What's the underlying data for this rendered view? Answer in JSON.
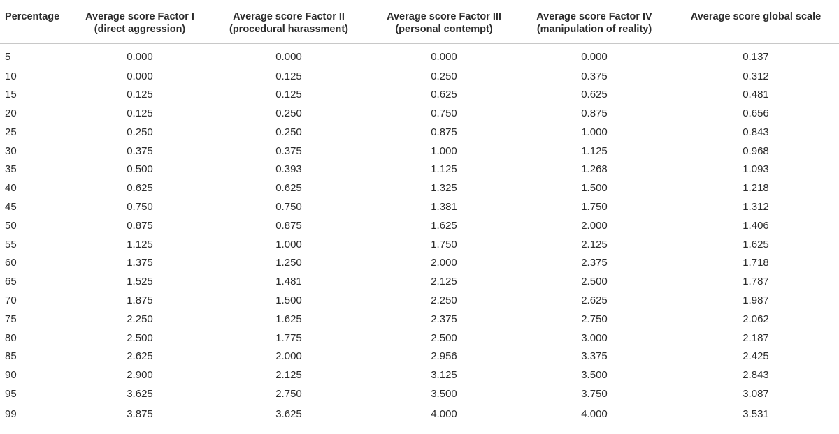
{
  "table": {
    "headers": [
      {
        "lines": [
          "Percentage"
        ]
      },
      {
        "lines": [
          "Average score Factor I",
          "(direct aggression)"
        ]
      },
      {
        "lines": [
          "Average score Factor II",
          "(procedural harassment)"
        ]
      },
      {
        "lines": [
          "Average score Factor III",
          "(personal contempt)"
        ]
      },
      {
        "lines": [
          "Average score Factor IV",
          "(manipulation of reality)"
        ]
      },
      {
        "lines": [
          "Average score global scale"
        ]
      }
    ],
    "rows": [
      [
        "5",
        "0.000",
        "0.000",
        "0.000",
        "0.000",
        "0.137"
      ],
      [
        "10",
        "0.000",
        "0.125",
        "0.250",
        "0.375",
        "0.312"
      ],
      [
        "15",
        "0.125",
        "0.125",
        "0.625",
        "0.625",
        "0.481"
      ],
      [
        "20",
        "0.125",
        "0.250",
        "0.750",
        "0.875",
        "0.656"
      ],
      [
        "25",
        "0.250",
        "0.250",
        "0.875",
        "1.000",
        "0.843"
      ],
      [
        "30",
        "0.375",
        "0.375",
        "1.000",
        "1.125",
        "0.968"
      ],
      [
        "35",
        "0.500",
        "0.393",
        "1.125",
        "1.268",
        "1.093"
      ],
      [
        "40",
        "0.625",
        "0.625",
        "1.325",
        "1.500",
        "1.218"
      ],
      [
        "45",
        "0.750",
        "0.750",
        "1.381",
        "1.750",
        "1.312"
      ],
      [
        "50",
        "0.875",
        "0.875",
        "1.625",
        "2.000",
        "1.406"
      ],
      [
        "55",
        "1.125",
        "1.000",
        "1.750",
        "2.125",
        "1.625"
      ],
      [
        "60",
        "1.375",
        "1.250",
        "2.000",
        "2.375",
        "1.718"
      ],
      [
        "65",
        "1.525",
        "1.481",
        "2.125",
        "2.500",
        "1.787"
      ],
      [
        "70",
        "1.875",
        "1.500",
        "2.250",
        "2.625",
        "1.987"
      ],
      [
        "75",
        "2.250",
        "1.625",
        "2.375",
        "2.750",
        "2.062"
      ],
      [
        "80",
        "2.500",
        "1.775",
        "2.500",
        "3.000",
        "2.187"
      ],
      [
        "85",
        "2.625",
        "2.000",
        "2.956",
        "3.375",
        "2.425"
      ],
      [
        "90",
        "2.900",
        "2.125",
        "3.125",
        "3.500",
        "2.843"
      ],
      [
        "95",
        "3.625",
        "2.750",
        "3.500",
        "3.750",
        "3.087"
      ],
      [
        "99",
        "3.875",
        "3.625",
        "4.000",
        "4.000",
        "3.531"
      ]
    ]
  }
}
